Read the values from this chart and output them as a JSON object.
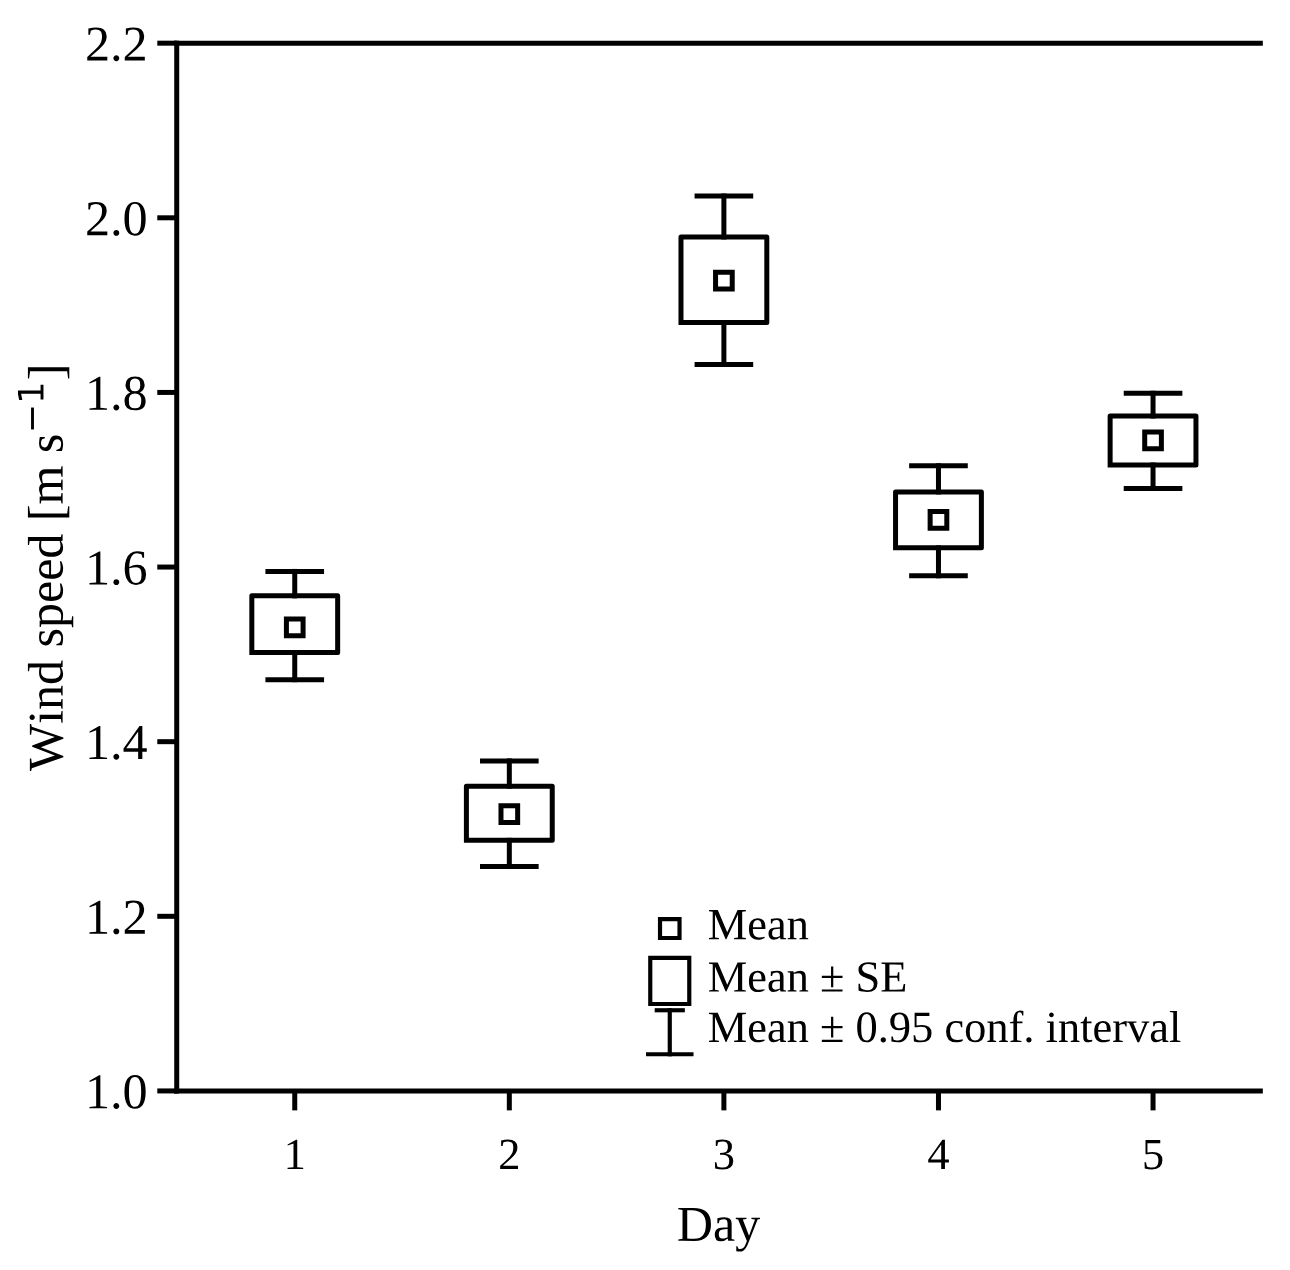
{
  "chart_data": {
    "type": "box",
    "xlabel": "Day",
    "ylabel": "Wind speed [m s$^{−1}$]",
    "categories": [
      "1",
      "2",
      "3",
      "4",
      "5"
    ],
    "boxes": [
      {
        "low": 1.471,
        "q1": 1.502,
        "q3": 1.567,
        "high": 1.595,
        "mean": 1.531
      },
      {
        "low": 1.257,
        "q1": 1.287,
        "q3": 1.349,
        "high": 1.378,
        "mean": 1.317
      },
      {
        "low": 1.832,
        "q1": 1.88,
        "q3": 1.978,
        "high": 2.025,
        "mean": 1.928
      },
      {
        "low": 1.59,
        "q1": 1.622,
        "q3": 1.686,
        "high": 1.716,
        "mean": 1.654
      },
      {
        "low": 1.69,
        "q1": 1.717,
        "q3": 1.773,
        "high": 1.799,
        "mean": 1.745
      }
    ],
    "color": "#000000",
    "ylim": [
      1.0,
      2.2
    ],
    "yticks": [
      {
        "value": 1.0,
        "label": "1.0"
      },
      {
        "value": 1.2,
        "label": "1.2"
      },
      {
        "value": 1.4,
        "label": "1.4"
      },
      {
        "value": 1.6,
        "label": "1.6"
      },
      {
        "value": 1.8,
        "label": "1.8"
      },
      {
        "value": 2.0,
        "label": "2.0"
      },
      {
        "value": 2.2,
        "label": "2.2"
      }
    ],
    "grid": false,
    "marker": "square",
    "annotations": [
      "Mean",
      "Mean ± SE",
      "Mean ± 0.95 conf. interval"
    ]
  }
}
